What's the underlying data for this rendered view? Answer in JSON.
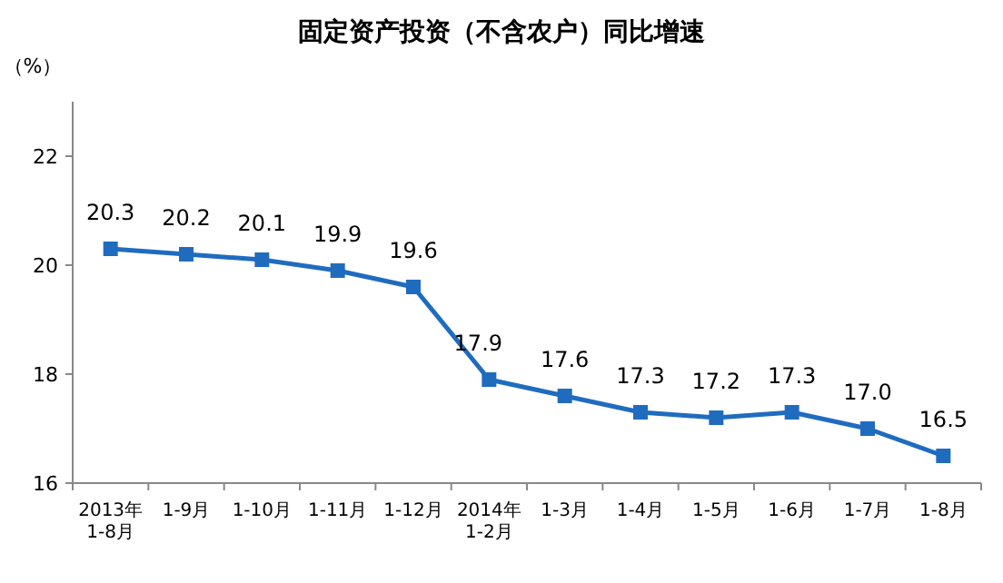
{
  "chart_data": {
    "type": "line",
    "title": "固定资产投资（不含农户）同比增速",
    "ylabel": "（%）",
    "categories": [
      "2013年\n1-8月",
      "1-9月",
      "1-10月",
      "1-11月",
      "1-12月",
      "2014年\n1-2月",
      "1-3月",
      "1-4月",
      "1-5月",
      "1-6月",
      "1-7月",
      "1-8月"
    ],
    "series": [
      {
        "color": "#1f6cbf",
        "values": [
          20.3,
          20.2,
          20.1,
          19.9,
          19.6,
          17.9,
          17.6,
          17.3,
          17.2,
          17.3,
          17.0,
          16.5
        ],
        "value_labels": [
          "20.3",
          "20.2",
          "20.1",
          "19.9",
          "19.6",
          "17.9",
          "17.6",
          "17.3",
          "17.2",
          "17.3",
          "17.0",
          "16.5"
        ]
      }
    ],
    "ylim": [
      16,
      23
    ],
    "yticks": [
      16,
      18,
      20,
      22
    ],
    "marker": "square"
  }
}
